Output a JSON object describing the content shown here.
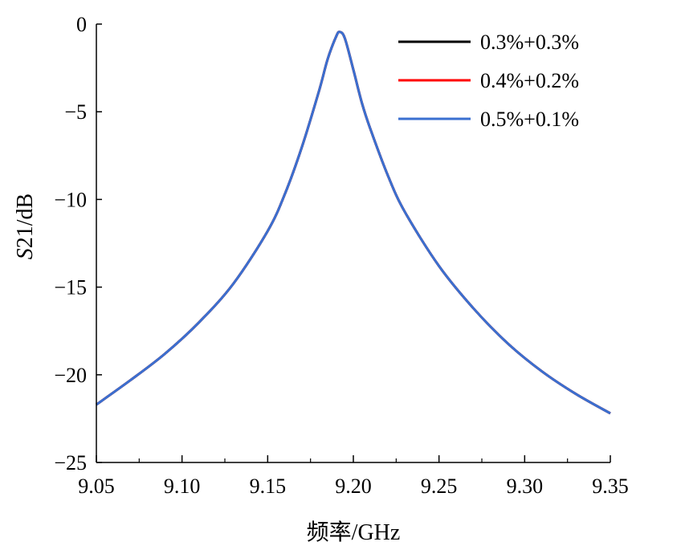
{
  "chart_data": {
    "type": "line",
    "title": "",
    "xlabel": "频率/GHz",
    "ylabel_italic": "S",
    "ylabel_rest": "21/dB",
    "xlim": [
      9.05,
      9.35
    ],
    "ylim": [
      -25,
      0
    ],
    "x_ticks": [
      9.05,
      9.1,
      9.15,
      9.2,
      9.25,
      9.3,
      9.35
    ],
    "x_tick_labels": [
      "9.05",
      "9.10",
      "9.15",
      "9.20",
      "9.25",
      "9.30",
      "9.35"
    ],
    "x_minor_ticks": [
      9.075,
      9.125,
      9.175,
      9.225,
      9.275,
      9.325
    ],
    "y_ticks": [
      0,
      -5,
      -10,
      -15,
      -20,
      -25
    ],
    "y_tick_labels": [
      "0",
      "−5",
      "−10",
      "−15",
      "−20",
      "−25"
    ],
    "grid": false,
    "legend_position": "top-right",
    "x": [
      9.05,
      9.07,
      9.09,
      9.11,
      9.13,
      9.15,
      9.16,
      9.17,
      9.18,
      9.185,
      9.19,
      9.192,
      9.195,
      9.2,
      9.205,
      9.21,
      9.22,
      9.23,
      9.25,
      9.27,
      9.29,
      9.31,
      9.33,
      9.35
    ],
    "series": [
      {
        "name": "0.3%+0.3%",
        "color": "#000000",
        "values": [
          -21.7,
          -20.3,
          -18.8,
          -17.0,
          -14.8,
          -11.8,
          -9.7,
          -7.0,
          -3.8,
          -2.0,
          -0.7,
          -0.45,
          -0.8,
          -2.6,
          -4.5,
          -6.0,
          -8.6,
          -10.7,
          -13.8,
          -16.2,
          -18.2,
          -19.8,
          -21.1,
          -22.2
        ]
      },
      {
        "name": "0.4%+0.2%",
        "color": "#ff0000",
        "values": [
          -21.7,
          -20.3,
          -18.8,
          -17.0,
          -14.8,
          -11.8,
          -9.7,
          -7.0,
          -3.8,
          -2.0,
          -0.7,
          -0.45,
          -0.8,
          -2.6,
          -4.5,
          -6.0,
          -8.6,
          -10.7,
          -13.8,
          -16.2,
          -18.2,
          -19.8,
          -21.1,
          -22.2
        ]
      },
      {
        "name": "0.5%+0.1%",
        "color": "#3a6fd0",
        "values": [
          -21.7,
          -20.3,
          -18.8,
          -17.0,
          -14.8,
          -11.8,
          -9.7,
          -7.0,
          -3.8,
          -2.0,
          -0.7,
          -0.45,
          -0.8,
          -2.6,
          -4.5,
          -6.0,
          -8.6,
          -10.7,
          -13.8,
          -16.2,
          -18.2,
          -19.8,
          -21.1,
          -22.2
        ]
      }
    ]
  }
}
